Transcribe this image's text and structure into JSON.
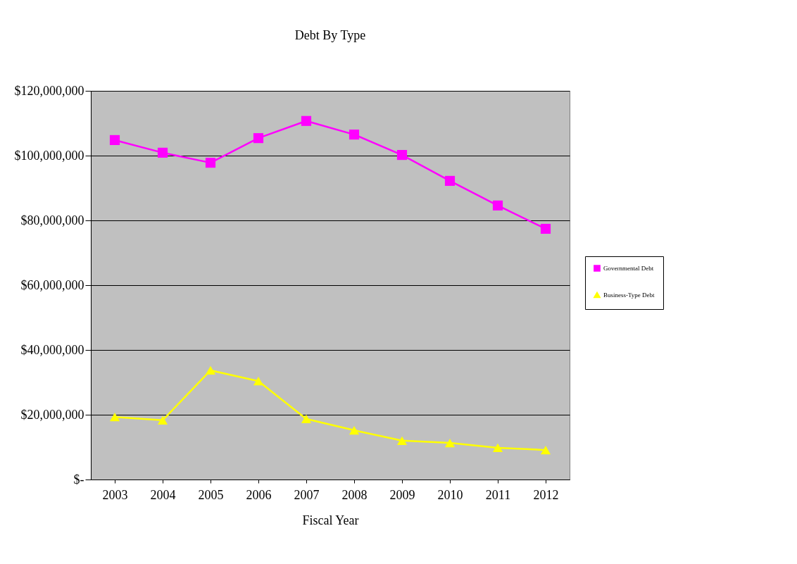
{
  "chart_data": {
    "type": "line",
    "title": "Debt By Type",
    "xlabel": "Fiscal Year",
    "categories": [
      "2003",
      "2004",
      "2005",
      "2006",
      "2007",
      "2008",
      "2009",
      "2010",
      "2011",
      "2012"
    ],
    "series": [
      {
        "name": "Governmental Debt",
        "color": "#ff00ff",
        "marker": "square",
        "values": [
          104800000,
          100900000,
          97800000,
          105400000,
          110700000,
          106500000,
          100200000,
          92200000,
          84600000,
          77400000
        ]
      },
      {
        "name": "Business-Type Debt",
        "color": "#ffff00",
        "marker": "triangle",
        "values": [
          19300000,
          18300000,
          33700000,
          30400000,
          18700000,
          15200000,
          12000000,
          11300000,
          9800000,
          9100000
        ]
      }
    ],
    "ylim": [
      0,
      120000000
    ],
    "yticks": [
      {
        "value": 0,
        "label": "$-"
      },
      {
        "value": 20000000,
        "label": "$20,000,000"
      },
      {
        "value": 40000000,
        "label": "$40,000,000"
      },
      {
        "value": 60000000,
        "label": "$60,000,000"
      },
      {
        "value": 80000000,
        "label": "$80,000,000"
      },
      {
        "value": 100000000,
        "label": "$100,000,000"
      },
      {
        "value": 120000000,
        "label": "$120,000,000"
      }
    ],
    "grid": "y",
    "legend": "right",
    "line_style": "solid"
  }
}
